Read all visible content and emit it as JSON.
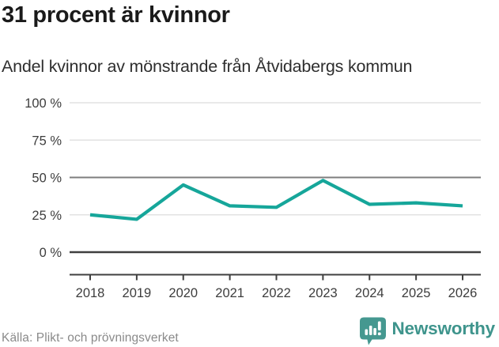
{
  "header": {
    "title": "31 procent är kvinnor",
    "subtitle": "Andel kvinnor av mönstrande från Åtvidabergs kommun"
  },
  "chart_data": {
    "type": "line",
    "title": "31 procent är kvinnor",
    "subtitle": "Andel kvinnor av mönstrande från Åtvidabergs kommun",
    "categories": [
      "2018",
      "2019",
      "2020",
      "2021",
      "2022",
      "2023",
      "2024",
      "2025",
      "2026"
    ],
    "series": [
      {
        "name": "Andel kvinnor av mönstrande",
        "values": [
          25,
          22,
          45,
          31,
          30,
          48,
          32,
          33,
          31
        ]
      }
    ],
    "unit": "%",
    "ylim": [
      0,
      100
    ],
    "yticks": [
      0,
      25,
      50,
      75,
      100
    ],
    "ytick_labels": [
      "0 %",
      "25 %",
      "50 %",
      "75 %",
      "100 %"
    ],
    "xlabel": "",
    "ylabel": "",
    "grid": "horizontal",
    "legend": "none",
    "line_color": "#16a69a",
    "emphasized_ytick": 50,
    "baseline_ytick": 0
  },
  "footer": {
    "source": "Källa: Plikt- och prövningsverket",
    "brand": "Newsworthy"
  },
  "colors": {
    "accent_teal": "#16a69a",
    "brand_teal": "#3e948c",
    "brand_icon_teal": "#459890",
    "title_text": "#1a1a1a",
    "subtitle_text": "#2e2e2e",
    "axis_text": "#3d3d3d",
    "grid_light": "#e2e2e2",
    "grid_mid": "#7e7e7e",
    "axis_dark": "#3f3f3f",
    "source_text": "#8a8a8a"
  },
  "icons": {
    "brand_logo": "newsworthy-speech-bubble-bar-chart-icon"
  }
}
